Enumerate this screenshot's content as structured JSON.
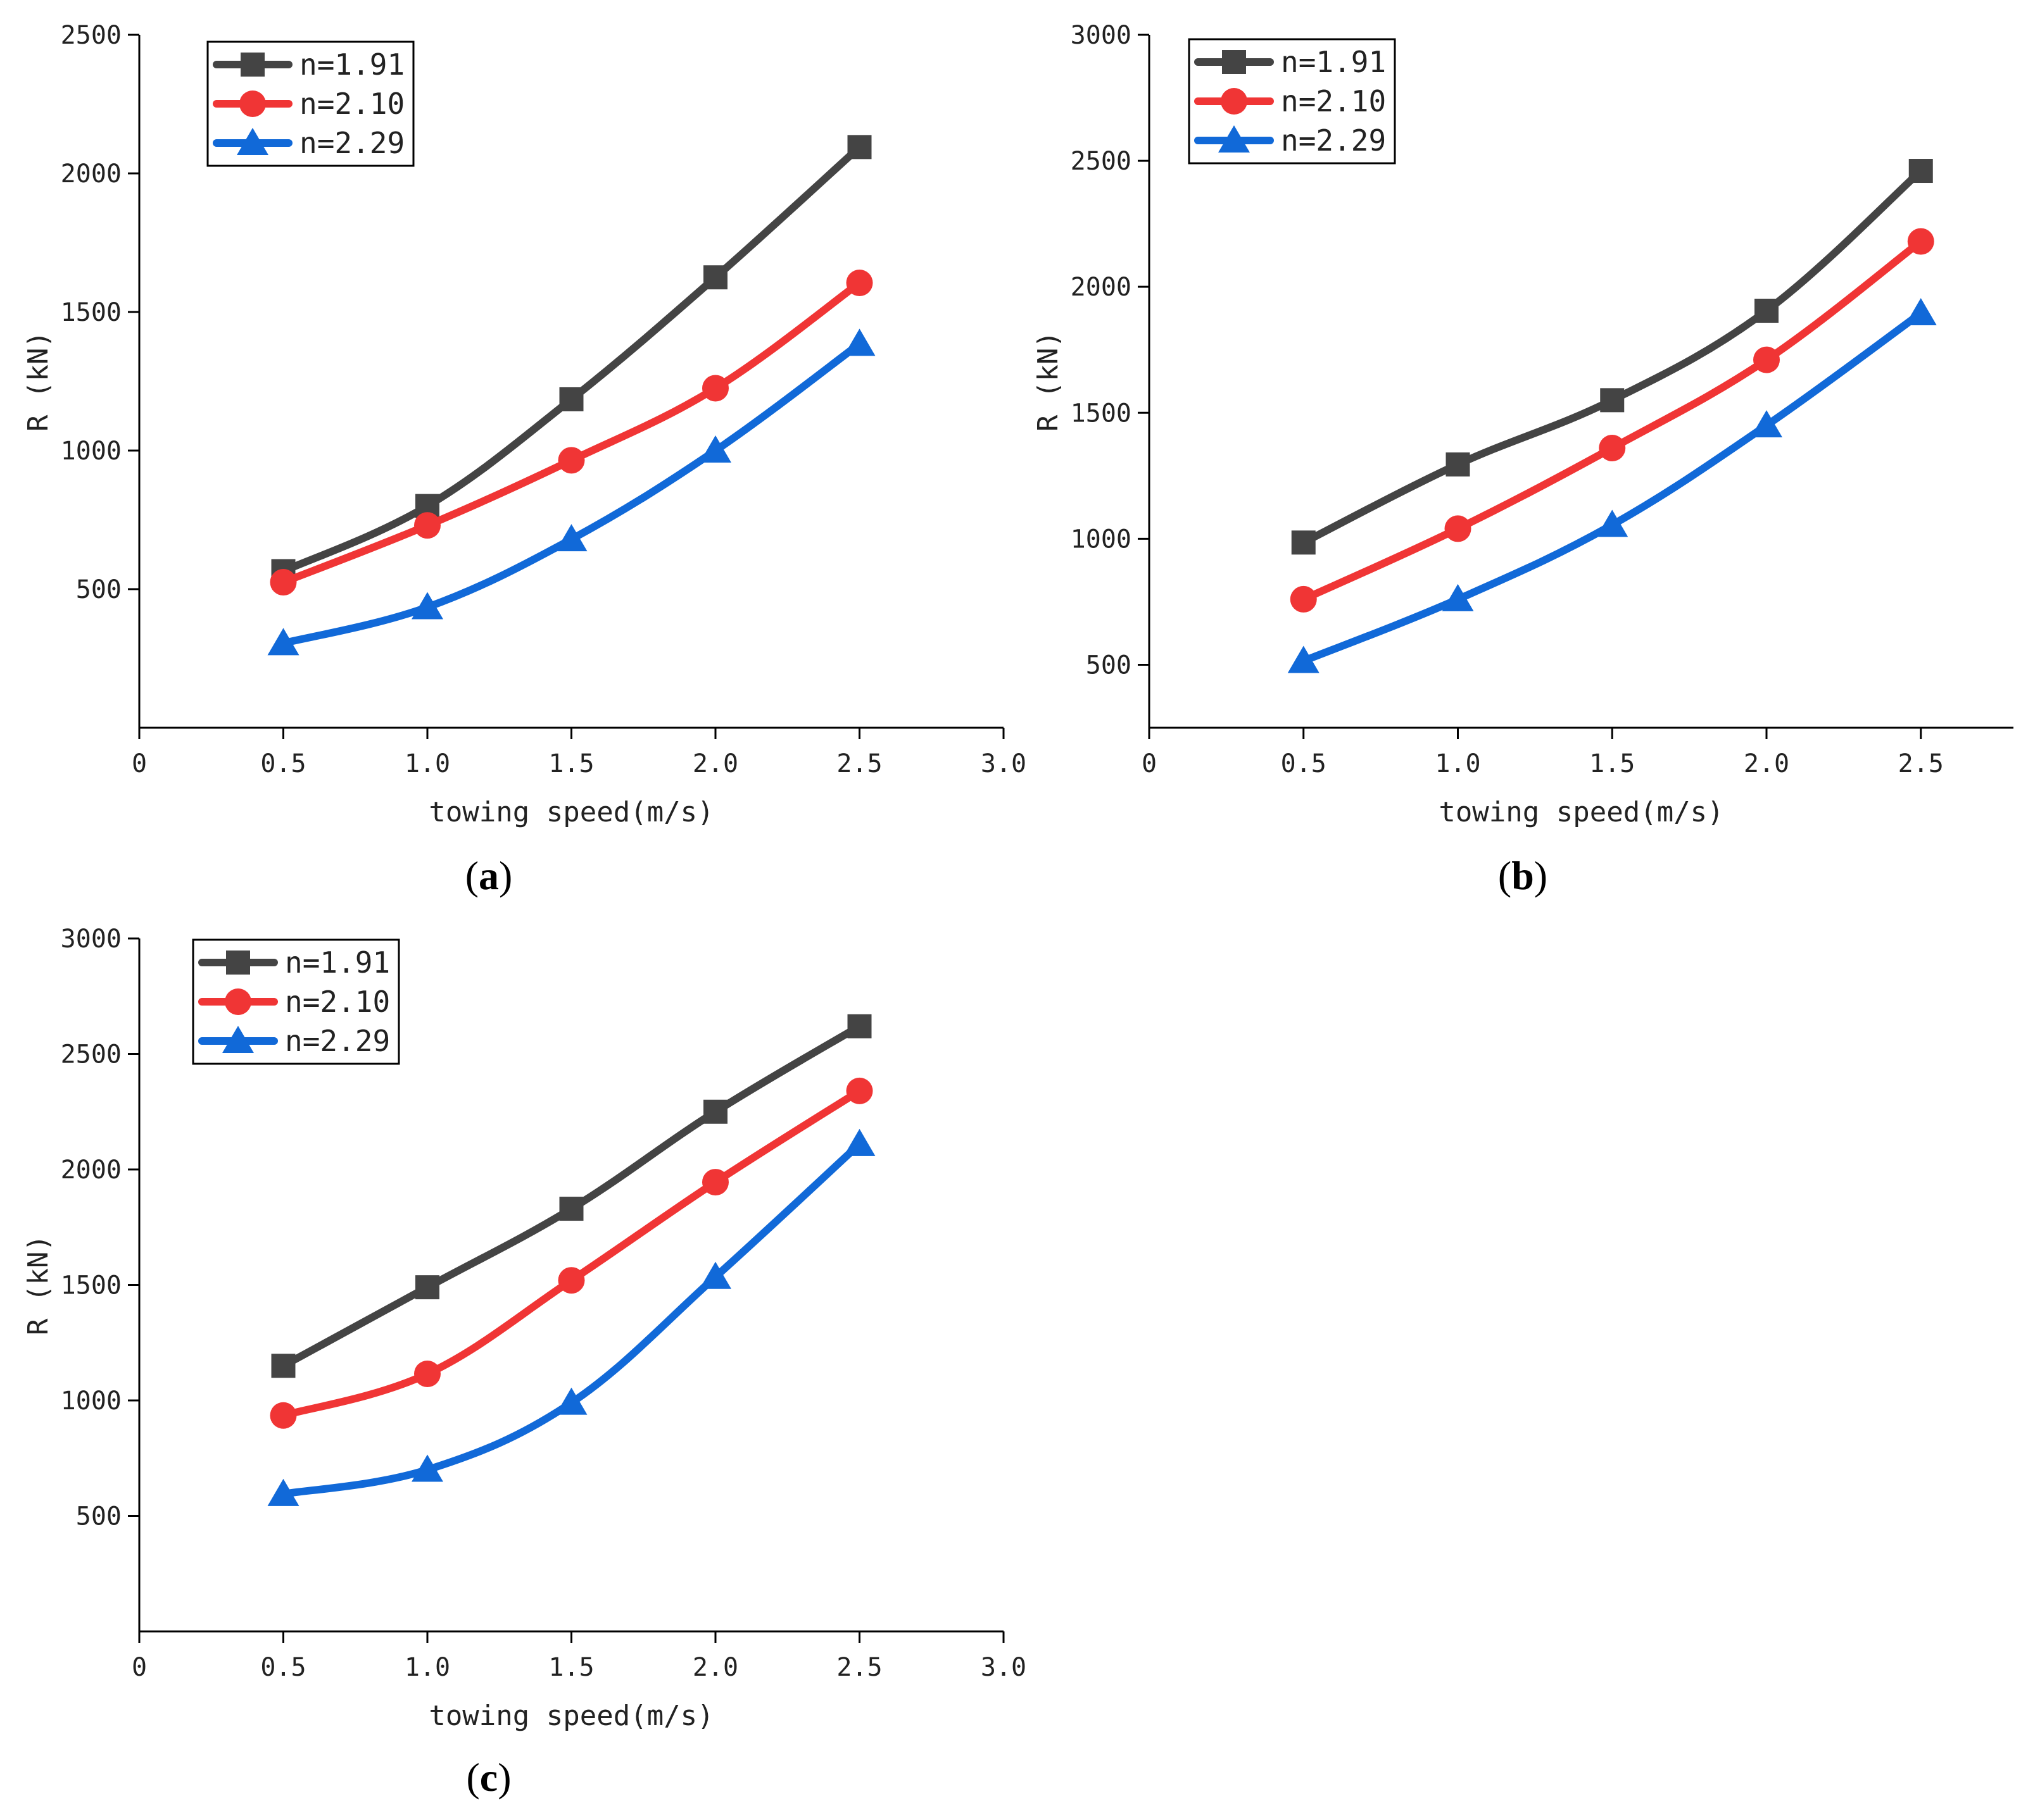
{
  "chart_data": [
    {
      "type": "line",
      "panel_label": "(a)",
      "xlabel": "towing speed(m/s)",
      "ylabel": "R (kN)",
      "xlim": [
        0,
        3.0
      ],
      "ylim": [
        0,
        2500
      ],
      "xticks": [
        0,
        0.5,
        1.0,
        1.5,
        2.0,
        2.5,
        3.0
      ],
      "xtick_labels": [
        "0",
        "0.5",
        "1.0",
        "1.5",
        "2.0",
        "2.5",
        "3.0"
      ],
      "yticks": [
        500,
        1000,
        1500,
        2000,
        2500
      ],
      "ytick_labels": [
        "500",
        "1000",
        "1500",
        "2000",
        "2500"
      ],
      "legend_position": "top-left",
      "x": [
        0.5,
        1.0,
        1.5,
        2.0,
        2.5
      ],
      "series": [
        {
          "name": "n=1.91",
          "color": "#444444",
          "marker": "square",
          "values": [
            565,
            800,
            1185,
            1625,
            2095
          ]
        },
        {
          "name": "n=2.10",
          "color": "#f03535",
          "marker": "circle",
          "values": [
            525,
            730,
            965,
            1225,
            1605
          ]
        },
        {
          "name": "n=2.29",
          "color": "#1169d8",
          "marker": "triangle",
          "values": [
            305,
            435,
            680,
            1000,
            1385
          ]
        }
      ]
    },
    {
      "type": "line",
      "panel_label": "(b)",
      "xlabel": "towing speed(m/s)",
      "ylabel": "R (kN)",
      "xlim": [
        0,
        2.8
      ],
      "ylim": [
        250,
        3000
      ],
      "xticks": [
        0,
        0.5,
        1.0,
        1.5,
        2.0,
        2.5
      ],
      "xtick_labels": [
        "0",
        "0.5",
        "1.0",
        "1.5",
        "2.0",
        "2.5"
      ],
      "yticks": [
        500,
        1000,
        1500,
        2000,
        2500,
        3000
      ],
      "ytick_labels": [
        "500",
        "1000",
        "1500",
        "2000",
        "2500",
        "3000"
      ],
      "legend_position": "top-left",
      "x": [
        0.5,
        1.0,
        1.5,
        2.0,
        2.5
      ],
      "series": [
        {
          "name": "n=1.91",
          "color": "#444444",
          "marker": "square",
          "values": [
            985,
            1295,
            1550,
            1905,
            2460
          ]
        },
        {
          "name": "n=2.10",
          "color": "#f03535",
          "marker": "circle",
          "values": [
            760,
            1040,
            1360,
            1710,
            2180
          ]
        },
        {
          "name": "n=2.29",
          "color": "#1169d8",
          "marker": "triangle",
          "values": [
            515,
            760,
            1055,
            1450,
            1895
          ]
        }
      ]
    },
    {
      "type": "line",
      "panel_label": "(c)",
      "xlabel": "towing speed(m/s)",
      "ylabel": "R (kN)",
      "xlim": [
        0,
        3.0
      ],
      "ylim": [
        0,
        3000
      ],
      "xticks": [
        0,
        0.5,
        1.0,
        1.5,
        2.0,
        2.5,
        3.0
      ],
      "xtick_labels": [
        "0",
        "0.5",
        "1.0",
        "1.5",
        "2.0",
        "2.5",
        "3.0"
      ],
      "yticks": [
        500,
        1000,
        1500,
        2000,
        2500,
        3000
      ],
      "ytick_labels": [
        "500",
        "1000",
        "1500",
        "2000",
        "2500",
        "3000"
      ],
      "legend_position": "top-left",
      "x": [
        0.5,
        1.0,
        1.5,
        2.0,
        2.5
      ],
      "series": [
        {
          "name": "n=1.91",
          "color": "#444444",
          "marker": "square",
          "values": [
            1150,
            1490,
            1830,
            2250,
            2620
          ]
        },
        {
          "name": "n=2.10",
          "color": "#f03535",
          "marker": "circle",
          "values": [
            935,
            1115,
            1520,
            1945,
            2340
          ]
        },
        {
          "name": "n=2.29",
          "color": "#1169d8",
          "marker": "triangle",
          "values": [
            595,
            700,
            990,
            1535,
            2110
          ]
        }
      ]
    }
  ]
}
